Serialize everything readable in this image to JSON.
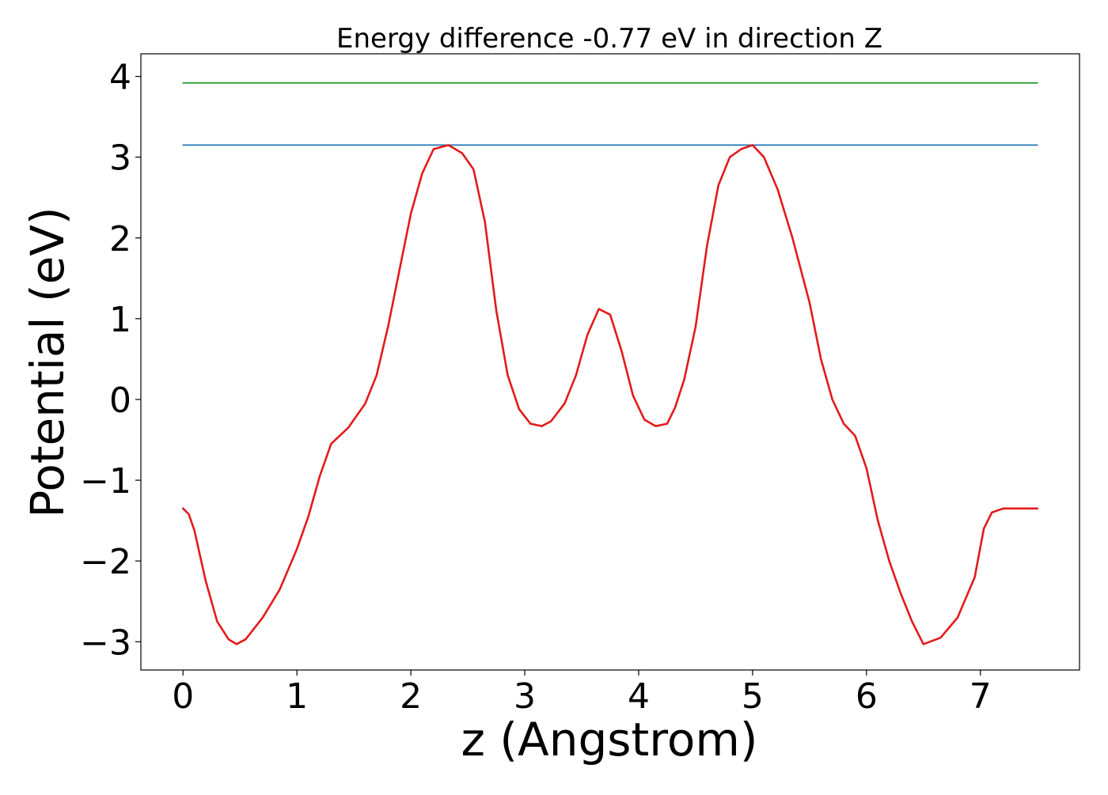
{
  "chart_data": {
    "type": "line",
    "title": "Energy difference -0.77 eV in direction Z",
    "xlabel": "z (Angstrom)",
    "ylabel": "Potential (eV)",
    "xlim": [
      -0.37,
      7.87
    ],
    "ylim": [
      -3.35,
      4.28
    ],
    "xticks": [
      0,
      1,
      2,
      3,
      4,
      5,
      6,
      7
    ],
    "xtick_labels": [
      "0",
      "1",
      "2",
      "3",
      "4",
      "5",
      "6",
      "7"
    ],
    "yticks": [
      -3,
      -2,
      -1,
      0,
      1,
      2,
      3,
      4
    ],
    "ytick_labels": [
      "−3",
      "−2",
      "−1",
      "0",
      "1",
      "2",
      "3",
      "4"
    ],
    "grid": false,
    "legend": "none",
    "series": [
      {
        "color": "#2ca02c",
        "x": [
          0,
          7.5
        ],
        "y": [
          3.92,
          3.92
        ]
      },
      {
        "color": "#1f77b4",
        "x": [
          0,
          7.5
        ],
        "y": [
          3.15,
          3.15
        ]
      },
      {
        "color": "#e31a1c",
        "x": [
          0.0,
          0.05,
          0.1,
          0.2,
          0.3,
          0.4,
          0.47,
          0.55,
          0.7,
          0.85,
          1.0,
          1.1,
          1.2,
          1.3,
          1.45,
          1.6,
          1.7,
          1.8,
          1.9,
          2.0,
          2.1,
          2.2,
          2.33,
          2.45,
          2.55,
          2.65,
          2.75,
          2.85,
          2.95,
          3.05,
          3.15,
          3.23,
          3.35,
          3.45,
          3.55,
          3.65,
          3.75,
          3.85,
          3.95,
          4.05,
          4.15,
          4.25,
          4.32,
          4.4,
          4.5,
          4.6,
          4.7,
          4.8,
          4.9,
          5.0,
          5.1,
          5.22,
          5.35,
          5.5,
          5.6,
          5.7,
          5.8,
          5.9,
          6.0,
          6.1,
          6.2,
          6.3,
          6.4,
          6.5,
          6.65,
          6.8,
          6.95,
          7.03,
          7.1,
          7.2,
          7.3,
          7.4,
          7.5
        ],
        "y": [
          -1.35,
          -1.42,
          -1.62,
          -2.25,
          -2.75,
          -2.97,
          -3.03,
          -2.97,
          -2.7,
          -2.35,
          -1.85,
          -1.45,
          -0.95,
          -0.55,
          -0.35,
          -0.05,
          0.3,
          0.9,
          1.6,
          2.3,
          2.8,
          3.1,
          3.15,
          3.05,
          2.85,
          2.2,
          1.1,
          0.3,
          -0.12,
          -0.3,
          -0.33,
          -0.27,
          -0.05,
          0.3,
          0.8,
          1.12,
          1.05,
          0.6,
          0.05,
          -0.25,
          -0.33,
          -0.3,
          -0.1,
          0.25,
          0.9,
          1.9,
          2.65,
          3.0,
          3.1,
          3.15,
          3.0,
          2.6,
          2.0,
          1.2,
          0.5,
          0.0,
          -0.3,
          -0.45,
          -0.85,
          -1.5,
          -2.0,
          -2.4,
          -2.75,
          -3.03,
          -2.95,
          -2.7,
          -2.2,
          -1.6,
          -1.4,
          -1.35,
          -1.35,
          -1.35,
          -1.35
        ]
      }
    ]
  }
}
